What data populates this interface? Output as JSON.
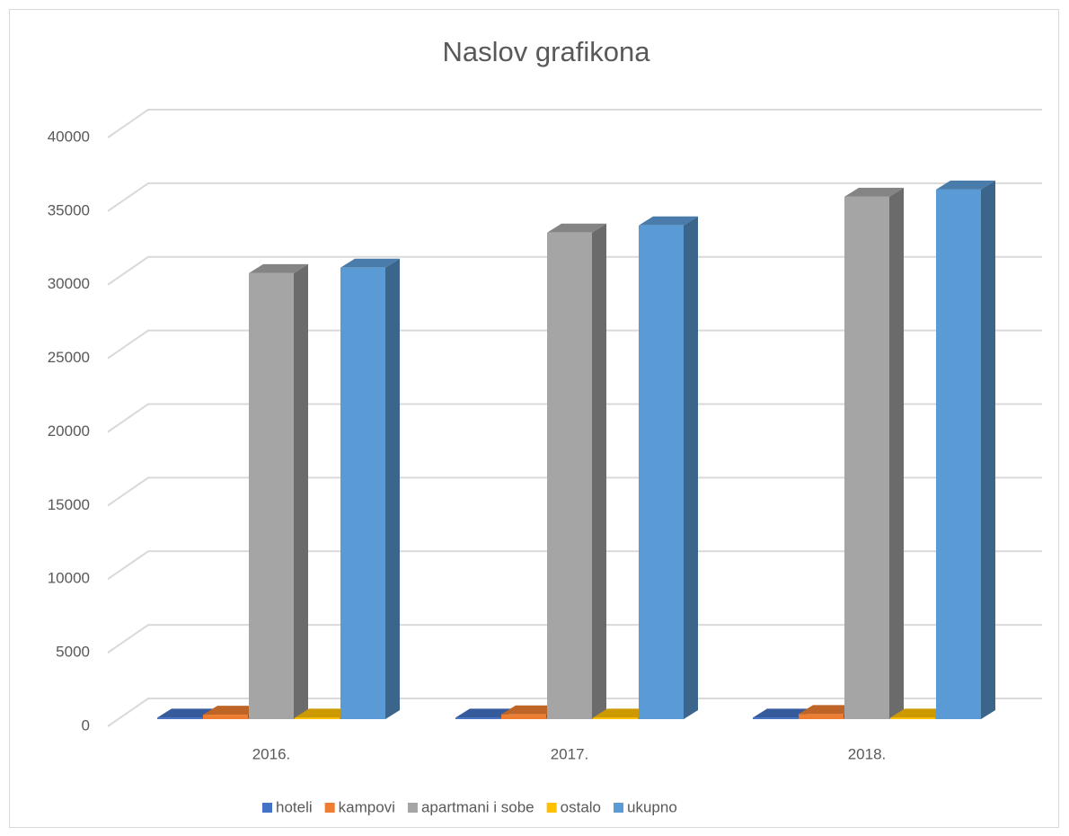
{
  "chart_data": {
    "type": "bar3d",
    "title": "Naslov grafikona",
    "categories": [
      "2016.",
      "2017.",
      "2018."
    ],
    "series": [
      {
        "name": "hoteli",
        "color": "#4472c4",
        "values": [
          100,
          100,
          100
        ]
      },
      {
        "name": "kampovi",
        "color": "#ed7d31",
        "values": [
          300,
          320,
          340
        ]
      },
      {
        "name": "apartmani i sobe",
        "color": "#a5a5a5",
        "values": [
          30300,
          33050,
          35490
        ]
      },
      {
        "name": "ostalo",
        "color": "#ffc000",
        "values": [
          100,
          100,
          100
        ]
      },
      {
        "name": "ukupno",
        "color": "#5b9bd5",
        "values": [
          30670,
          33540,
          35980
        ]
      }
    ],
    "ylim": [
      0,
      40000
    ],
    "yticks": [
      0,
      5000,
      10000,
      15000,
      20000,
      25000,
      30000,
      35000,
      40000
    ],
    "grid": true,
    "legend": "bottom"
  }
}
